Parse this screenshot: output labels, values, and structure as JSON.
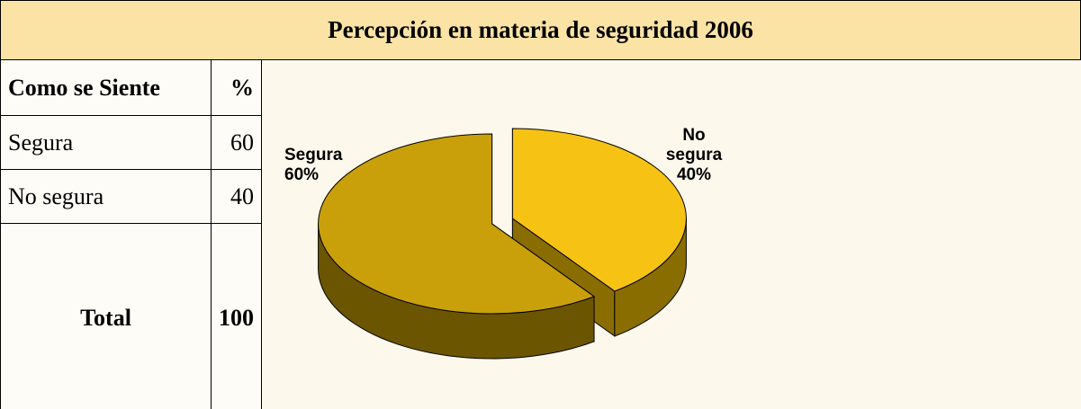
{
  "title": "Percepción en materia de seguridad 2006",
  "table": {
    "header": [
      "Como se Siente",
      "%"
    ],
    "rows": [
      [
        "Segura",
        60
      ],
      [
        "No segura",
        40
      ]
    ],
    "total": [
      "Total",
      100
    ]
  },
  "chart_data": {
    "type": "pie",
    "categories": [
      "Segura",
      "No segura"
    ],
    "values": [
      60,
      40
    ],
    "value_labels": [
      "60%",
      "40%"
    ],
    "colors": [
      "#c9a00a",
      "#f6c314"
    ],
    "side_colors": [
      "#6b5500",
      "#8a6d00"
    ]
  }
}
